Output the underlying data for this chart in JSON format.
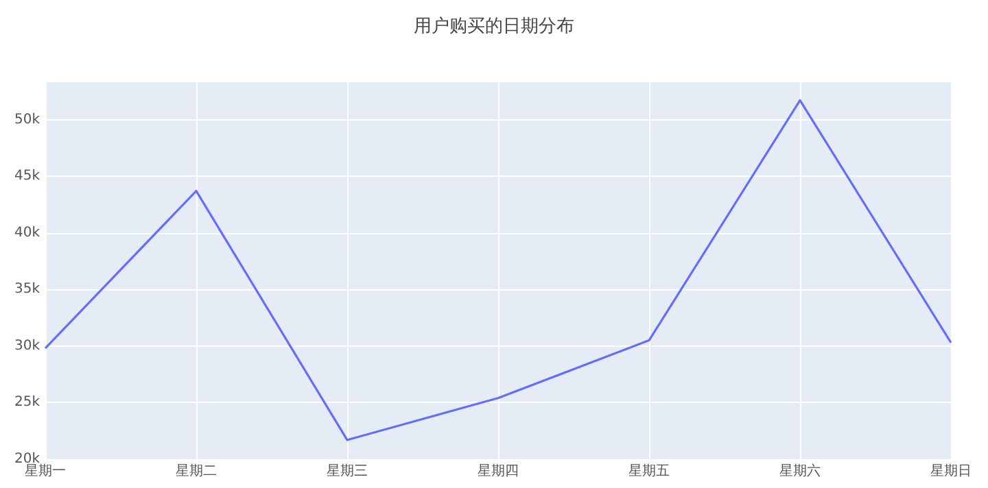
{
  "chart_data": {
    "type": "line",
    "title": "用户购买的日期分布",
    "categories": [
      "星期一",
      "星期二",
      "星期三",
      "星期四",
      "星期五",
      "星期六",
      "星期日"
    ],
    "series": [
      {
        "color": "#636efa",
        "values": [
          29800,
          43700,
          21700,
          25400,
          30500,
          51700,
          30300
        ]
      }
    ],
    "ylim": [
      20000,
      53300
    ],
    "yticks": [
      {
        "value": 20000,
        "label": "20k"
      },
      {
        "value": 25000,
        "label": "25k"
      },
      {
        "value": 30000,
        "label": "30k"
      },
      {
        "value": 35000,
        "label": "35k"
      },
      {
        "value": 40000,
        "label": "40k"
      },
      {
        "value": 45000,
        "label": "45k"
      },
      {
        "value": 50000,
        "label": "50k"
      }
    ],
    "grid": true,
    "marker": "none",
    "line_style": "solid"
  }
}
